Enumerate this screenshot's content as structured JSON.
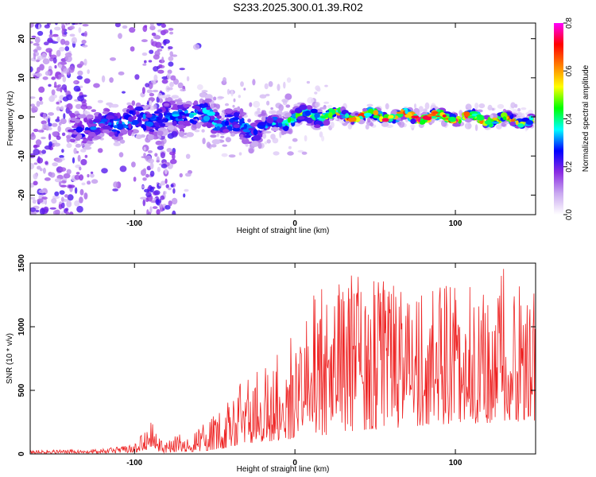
{
  "title": "S233.2025.300.01.39.R02",
  "chart_data": [
    {
      "type": "heatmap",
      "xlabel": "Height of straight line (km)",
      "ylabel": "Frequency (Hz)",
      "xlim": [
        -165,
        150
      ],
      "ylim": [
        -25,
        24
      ],
      "xticks": [
        -100,
        0,
        100
      ],
      "yticks": [
        -20,
        -10,
        0,
        10,
        20
      ],
      "colorbar": {
        "label": "Normalized spectral amplitude",
        "range": [
          0,
          0.8
        ],
        "ticks": [
          "0.0",
          "0.2",
          "0.4",
          "0.6",
          "0.8"
        ],
        "colors": [
          "#ffffff",
          "#c9a8f0",
          "#8a2be2",
          "#0000ff",
          "#00ffff",
          "#00ff00",
          "#ffff00",
          "#ff8000",
          "#ff0000",
          "#ff00ff"
        ]
      },
      "ridge": {
        "description_x": [
          -140,
          -120,
          -100,
          -80,
          -60,
          -40,
          -20,
          0,
          20,
          40,
          60,
          80,
          100,
          120,
          145
        ],
        "freq_center": [
          -3,
          -2,
          -1,
          0,
          1,
          -2,
          -3,
          0,
          0.5,
          0.3,
          0.2,
          0,
          0,
          -0.5,
          -1
        ],
        "amplitude": [
          0.25,
          0.3,
          0.3,
          0.3,
          0.35,
          0.3,
          0.3,
          0.45,
          0.55,
          0.65,
          0.7,
          0.72,
          0.72,
          0.65,
          0.55
        ]
      }
    },
    {
      "type": "line",
      "xlabel": "Height of straight line (km)",
      "ylabel": "SNR (10 * v/v)",
      "xlim": [
        -165,
        150
      ],
      "ylim": [
        0,
        1500
      ],
      "xticks": [
        -100,
        0,
        100
      ],
      "yticks": [
        0,
        500,
        1000,
        1500
      ],
      "line_color": "#ee2222",
      "envelope": {
        "x": [
          -165,
          -120,
          -100,
          -90,
          -85,
          -80,
          -60,
          -45,
          -40,
          -30,
          -20,
          0,
          20,
          40,
          60,
          80,
          100,
          120,
          130,
          150
        ],
        "max": [
          30,
          40,
          80,
          270,
          150,
          120,
          200,
          380,
          520,
          600,
          700,
          950,
          1460,
          1400,
          1350,
          1250,
          1400,
          1300,
          1500,
          1300
        ],
        "min": [
          5,
          5,
          10,
          20,
          10,
          10,
          20,
          40,
          60,
          80,
          90,
          120,
          150,
          180,
          200,
          220,
          240,
          240,
          250,
          260
        ]
      }
    }
  ]
}
